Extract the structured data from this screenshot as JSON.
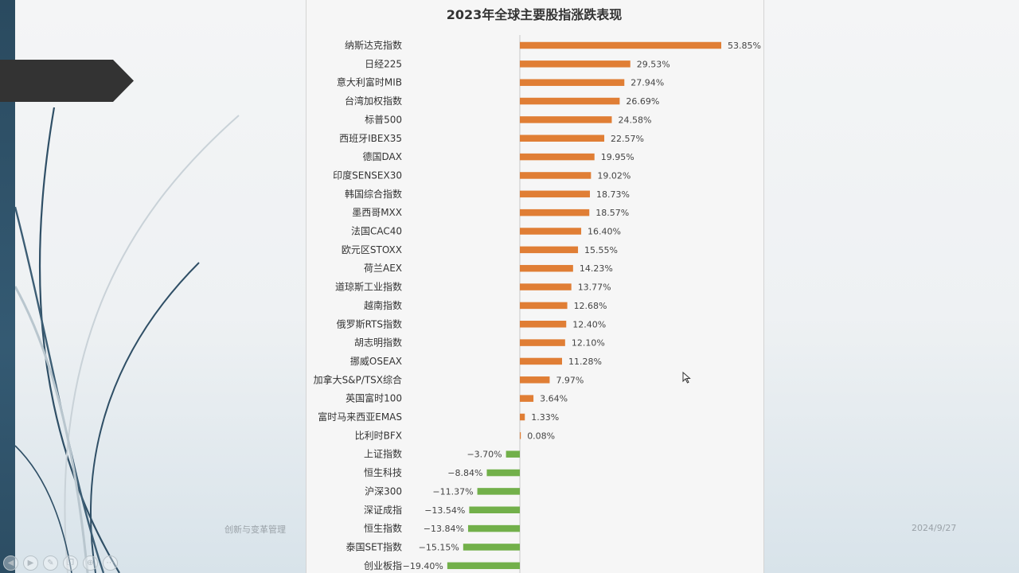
{
  "slide": {
    "footer_left": "创新与变革管理",
    "footer_right": "2024/9/27",
    "controls": [
      {
        "icon": "prev-icon",
        "glyph": "◀"
      },
      {
        "icon": "next-icon",
        "glyph": "▶"
      },
      {
        "icon": "pen-icon",
        "glyph": "✎"
      },
      {
        "icon": "copy-icon",
        "glyph": "❐"
      },
      {
        "icon": "zoom-icon",
        "glyph": "⊕"
      },
      {
        "icon": "more-icon",
        "glyph": "⋯"
      }
    ]
  },
  "colors": {
    "positive": "#e07e35",
    "negative": "#72b04a",
    "label": "#333333",
    "value": "#444444",
    "title": "#333333"
  },
  "chart_data": {
    "type": "bar",
    "orientation": "horizontal",
    "title": "2023年全球主要股指涨跌表现",
    "unit": "%",
    "categories": [
      "纳斯达克指数",
      "日经225",
      "意大利富时MIB",
      "台湾加权指数",
      "标普500",
      "西班牙IBEX35",
      "德国DAX",
      "印度SENSEX30",
      "韩国综合指数",
      "墨西哥MXX",
      "法国CAC40",
      "欧元区STOXX",
      "荷兰AEX",
      "道琼斯工业指数",
      "越南指数",
      "俄罗斯RTS指数",
      "胡志明指数",
      "挪威OSEAX",
      "加拿大S&P/TSX综合",
      "英国富时100",
      "富时马来西亚EMAS",
      "比利时BFX",
      "上证指数",
      "恒生科技",
      "沪深300",
      "深证成指",
      "恒生指数",
      "泰国SET指数",
      "创业板指"
    ],
    "values": [
      53.85,
      29.53,
      27.94,
      26.69,
      24.58,
      22.57,
      19.95,
      19.02,
      18.73,
      18.57,
      16.4,
      15.55,
      14.23,
      13.77,
      12.68,
      12.4,
      12.1,
      11.28,
      7.97,
      3.64,
      1.33,
      0.08,
      -3.7,
      -8.84,
      -11.37,
      -13.54,
      -13.84,
      -15.15,
      -19.4
    ],
    "value_labels": [
      "53.85%",
      "29.53%",
      "27.94%",
      "26.69%",
      "24.58%",
      "22.57%",
      "19.95%",
      "19.02%",
      "18.73%",
      "18.57%",
      "16.40%",
      "15.55%",
      "14.23%",
      "13.77%",
      "12.68%",
      "12.40%",
      "12.10%",
      "11.28%",
      "7.97%",
      "3.64%",
      "1.33%",
      "0.08%",
      "−3.70%",
      "−8.84%",
      "−11.37%",
      "−13.54%",
      "−13.84%",
      "−15.15%",
      "−19.40%"
    ]
  }
}
